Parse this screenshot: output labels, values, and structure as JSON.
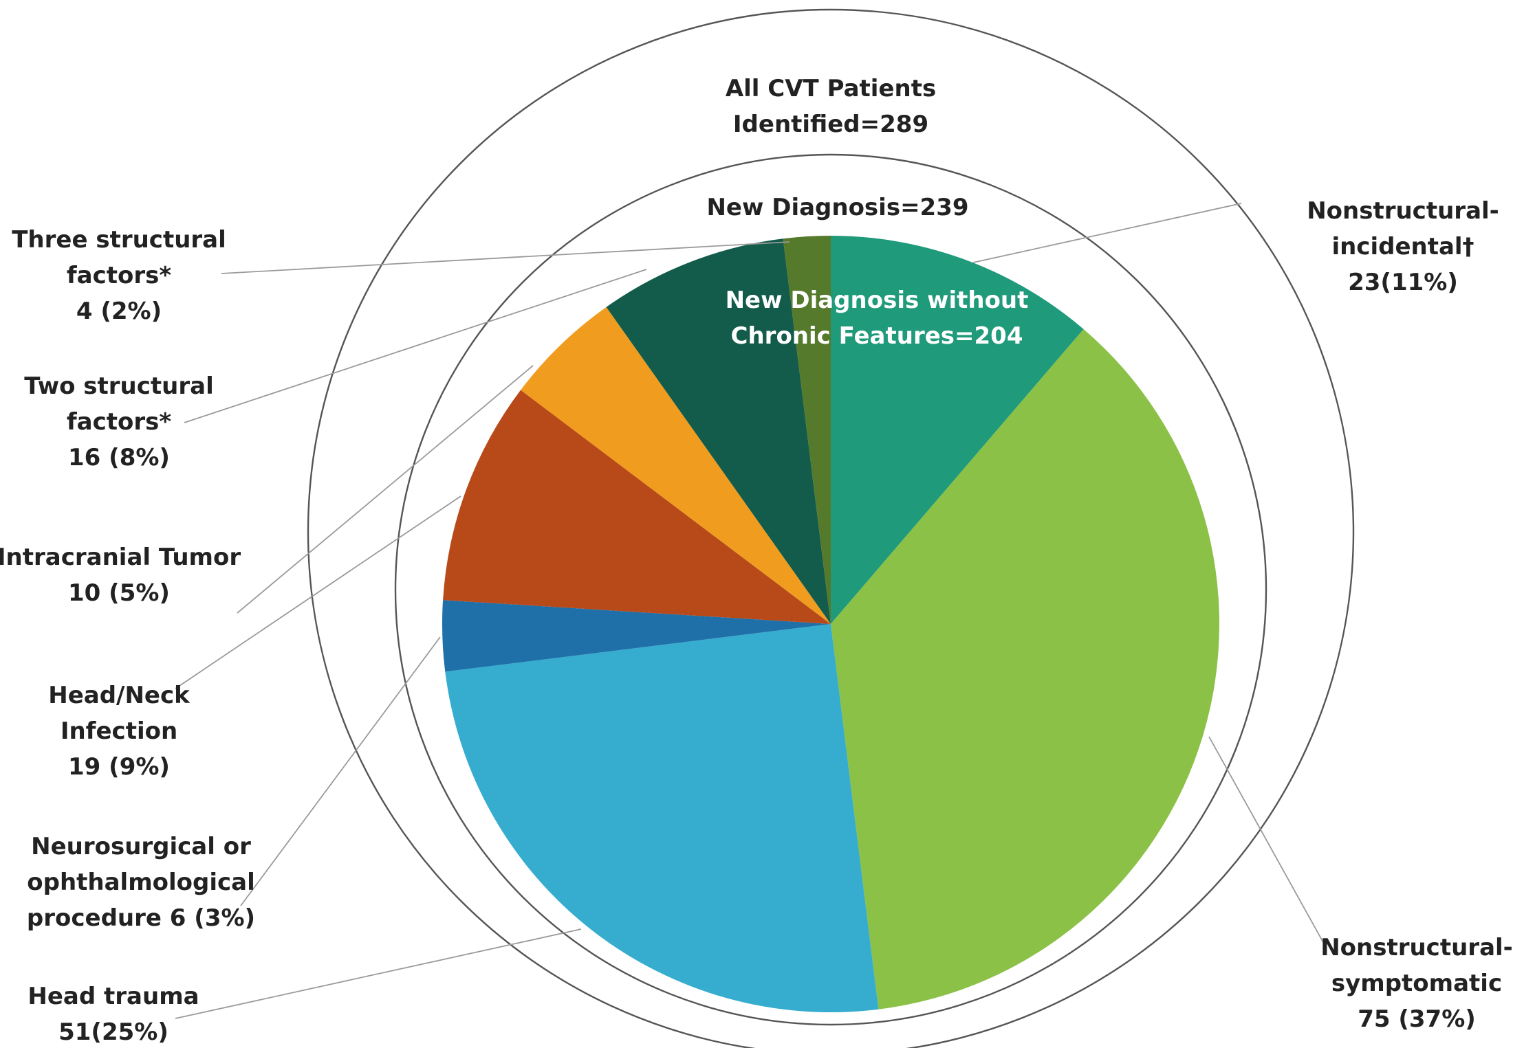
{
  "chart_data": {
    "type": "pie",
    "outer_ring": {
      "lines": [
        "All CVT Patients",
        "Identified=289"
      ],
      "value": 289
    },
    "middle_ring": {
      "lines": [
        "New Diagnosis=239"
      ],
      "value": 239
    },
    "pie_title": {
      "lines": [
        "New Diagnosis without",
        "Chronic Features=204"
      ],
      "value": 204
    },
    "slices": [
      {
        "label_lines": [
          "Nonstructural-",
          "incidental†",
          "23(11%)"
        ],
        "value": 23,
        "percent": 11,
        "color": "#1f9a7a"
      },
      {
        "label_lines": [
          "Nonstructural-",
          "symptomatic",
          "75 (37%)"
        ],
        "value": 75,
        "percent": 37,
        "color": "#8bc147"
      },
      {
        "label_lines": [
          "Head trauma",
          "51(25%)"
        ],
        "value": 51,
        "percent": 25,
        "color": "#36adcf"
      },
      {
        "label_lines": [
          "Neurosurgical or",
          "ophthalmological",
          "procedure 6 (3%)"
        ],
        "value": 6,
        "percent": 3,
        "color": "#1f6fa8"
      },
      {
        "label_lines": [
          "Head/Neck",
          "Infection",
          "19 (9%)"
        ],
        "value": 19,
        "percent": 9,
        "color": "#b84a1a"
      },
      {
        "label_lines": [
          "Intracranial Tumor",
          "10 (5%)"
        ],
        "value": 10,
        "percent": 5,
        "color": "#f09d1f"
      },
      {
        "label_lines": [
          "Two structural",
          "factors*",
          "16 (8%)"
        ],
        "value": 16,
        "percent": 8,
        "color": "#135b4a"
      },
      {
        "label_lines": [
          "Three structural",
          "factors*",
          "4 (2%)"
        ],
        "value": 4,
        "percent": 2,
        "color": "#557a2b"
      }
    ]
  }
}
